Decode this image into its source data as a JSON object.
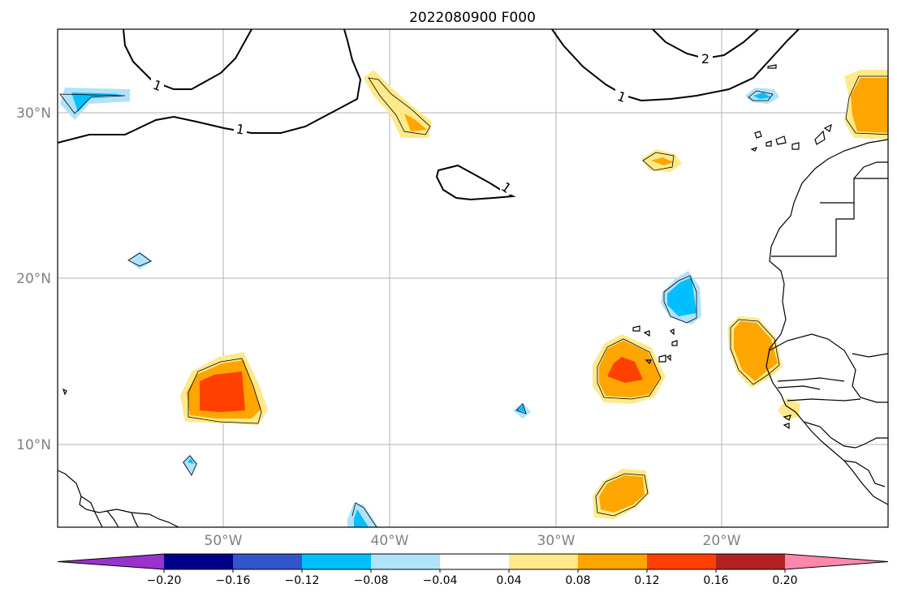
{
  "title": "2022080900 F000",
  "latitude_labels": [
    "30°N",
    "20°N",
    "10°N"
  ],
  "longitude_labels": [
    "50°W",
    "40°W",
    "30°W",
    "20°W"
  ],
  "contour_labels": [
    "1",
    "1",
    "2",
    "1",
    "1"
  ],
  "colorbar": {
    "ticks": [
      "−0.20",
      "−0.16",
      "−0.12",
      "−0.08",
      "−0.04",
      "0.04",
      "0.08",
      "0.12",
      "0.16",
      "0.20"
    ],
    "colors": [
      "#9933cc",
      "#000088",
      "#3355cc",
      "#00bfff",
      "#b0e2fa",
      "#ffffff",
      "#ffe98a",
      "#ffa500",
      "#ff4000",
      "#b22222",
      "#ff88aa"
    ]
  }
}
